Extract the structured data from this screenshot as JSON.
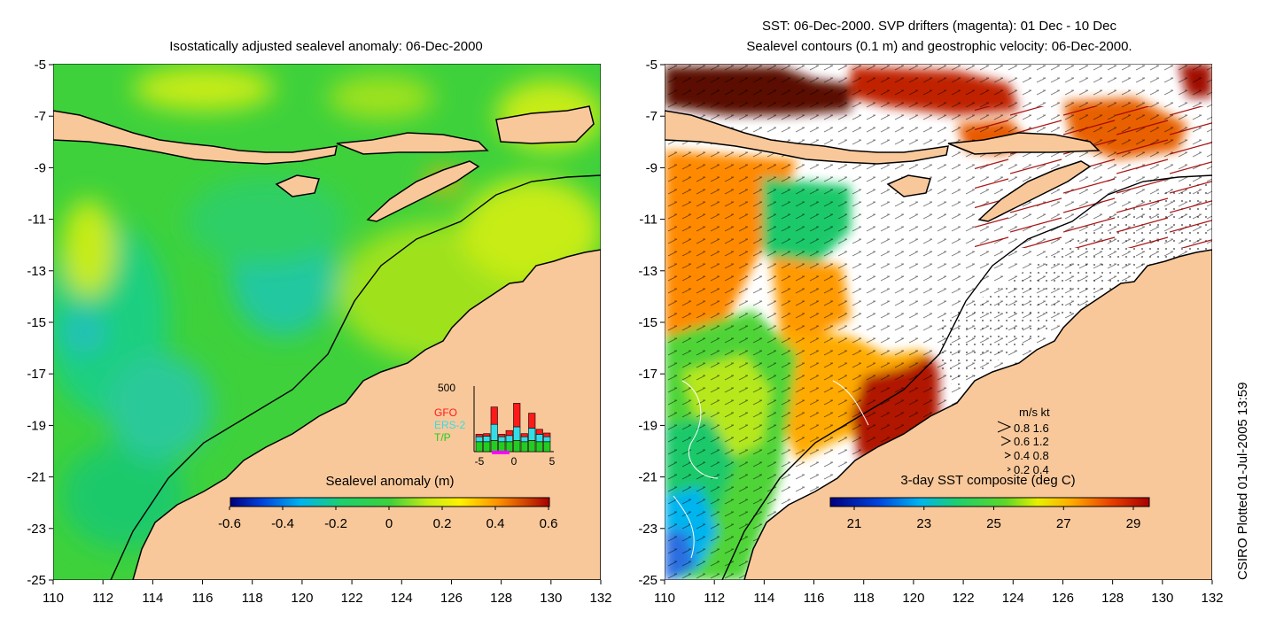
{
  "left_panel": {
    "title": "Isostatically adjusted sealevel anomaly: 06-Dec-2000",
    "colorbar": {
      "label": "Sealevel anomaly (m)",
      "ticks": [
        "-0.6",
        "-0.4",
        "-0.2",
        "0",
        "0.2",
        "0.4",
        "0.6"
      ],
      "colors": [
        "#00007f",
        "#0033cc",
        "#0088ee",
        "#00c4e6",
        "#10cfa0",
        "#1ec96b",
        "#3ed13c",
        "#7fdc1e",
        "#c7ec14",
        "#fff200",
        "#ffbf00",
        "#ff8000",
        "#e83c00",
        "#a80000"
      ]
    },
    "inset": {
      "ymax_label": "500",
      "x_ticks": [
        "-5",
        "0",
        "5"
      ],
      "legend": [
        {
          "label": "GFO",
          "color": "#ff1a1a"
        },
        {
          "label": "ERS-2",
          "color": "#33dde8"
        },
        {
          "label": "T/P",
          "color": "#22cc22"
        }
      ],
      "bars": [
        {
          "tp": 80,
          "ers": 40,
          "gfo": 20
        },
        {
          "tp": 80,
          "ers": 45,
          "gfo": 20
        },
        {
          "tp": 90,
          "ers": 130,
          "gfo": 140
        },
        {
          "tp": 80,
          "ers": 40,
          "gfo": 20
        },
        {
          "tp": 80,
          "ers": 50,
          "gfo": 40
        },
        {
          "tp": 90,
          "ers": 110,
          "gfo": 190
        },
        {
          "tp": 80,
          "ers": 40,
          "gfo": 25
        },
        {
          "tp": 90,
          "ers": 100,
          "gfo": 120
        },
        {
          "tp": 80,
          "ers": 60,
          "gfo": 40
        },
        {
          "tp": 80,
          "ers": 40,
          "gfo": 30
        }
      ]
    }
  },
  "right_panel": {
    "title_line1": "SST: 06-Dec-2000. SVP drifters (magenta): 01 Dec - 10 Dec",
    "title_line2": "Sealevel contours (0.1 m) and geostrophic velocity: 06-Dec-2000.",
    "colorbar": {
      "label": "3-day SST composite (deg C)",
      "ticks": [
        "21",
        "23",
        "25",
        "27",
        "29"
      ],
      "colors": [
        "#00007f",
        "#0033cc",
        "#0088ee",
        "#00c4e6",
        "#10cfa0",
        "#1ec96b",
        "#3ed13c",
        "#7fdc1e",
        "#c7ec14",
        "#fff200",
        "#ffbf00",
        "#ff8000",
        "#e83c00",
        "#a80000"
      ]
    },
    "velocity_legend": {
      "header": "m/s  kt",
      "rows": [
        "0.8  1.6",
        "0.6  1.2",
        "0.4  0.8",
        "0.2  0.4"
      ]
    }
  },
  "axes": {
    "y_ticks": [
      "-5",
      "-7",
      "-9",
      "-11",
      "-13",
      "-15",
      "-17",
      "-19",
      "-21",
      "-23",
      "-25"
    ],
    "x_ticks": [
      "110",
      "112",
      "114",
      "116",
      "118",
      "120",
      "122",
      "124",
      "126",
      "128",
      "130",
      "132"
    ],
    "lon_range": [
      110,
      132
    ],
    "lat_range": [
      -25,
      -5
    ]
  },
  "credit": "CSIRO Plotted 01-Jul-2005 13:59",
  "colors": {
    "land": "#f9c89a",
    "white_water": "#ffffff"
  }
}
